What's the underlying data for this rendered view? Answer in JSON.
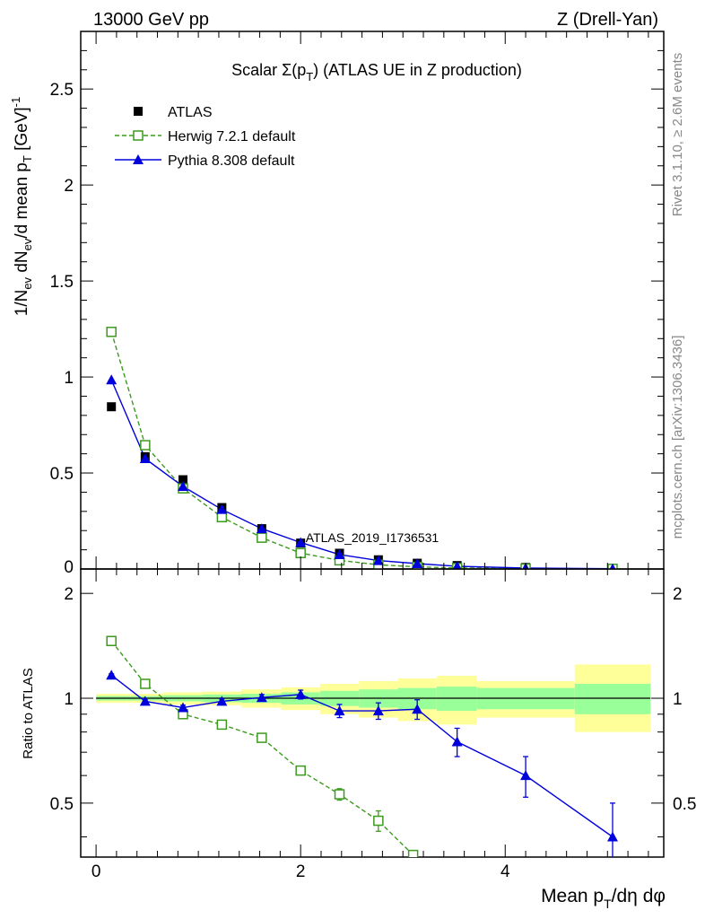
{
  "header": {
    "left": "13000 GeV pp",
    "right": "Z (Drell-Yan)"
  },
  "side_labels": {
    "rivet": "Rivet 3.1.10, ≥ 2.6M events",
    "mcplots": "mcplots.cern.ch [arXiv:1306.3436]"
  },
  "chart_data": [
    {
      "type": "scatter",
      "panel": "main",
      "title": "Scalar Σ(pT) (ATLAS UE in Z production)",
      "analysis_label": "ATLAS_2019_I1736531",
      "ylabel": "1/Nev dNev/d mean pT [GeV]^-1",
      "xlim": [
        -0.15,
        5.55
      ],
      "ylim": [
        0,
        2.8
      ],
      "yticks": [
        0.5,
        1,
        1.5,
        2,
        2.5
      ],
      "ytick_labels": [
        "0.5",
        "1",
        "1.5",
        "2",
        "2.5"
      ],
      "legend_position": "top-left",
      "x": [
        0.15,
        0.48,
        0.85,
        1.23,
        1.62,
        2.0,
        2.38,
        2.76,
        3.14,
        3.53,
        4.2,
        5.05
      ],
      "series": [
        {
          "name": "ATLAS",
          "color": "#000000",
          "marker": "filled-square",
          "values": [
            0.845,
            0.585,
            0.465,
            0.32,
            0.21,
            0.135,
            0.082,
            0.048,
            0.03,
            0.018,
            0.008,
            0.003
          ]
        },
        {
          "name": "Herwig 7.2.1 default",
          "color": "#3c9a1e",
          "marker": "open-square",
          "line": "dashed",
          "values": [
            1.235,
            0.645,
            0.42,
            0.27,
            0.163,
            0.083,
            0.045,
            0.022,
            0.011,
            0.005,
            0.002,
            0.0008
          ]
        },
        {
          "name": "Pythia 8.308 default",
          "color": "#0000dd",
          "marker": "filled-triangle",
          "line": "solid",
          "values": [
            0.985,
            0.575,
            0.43,
            0.31,
            0.21,
            0.138,
            0.075,
            0.044,
            0.028,
            0.014,
            0.005,
            0.0012
          ]
        }
      ]
    },
    {
      "type": "scatter",
      "panel": "ratio",
      "ylabel": "Ratio to ATLAS",
      "xlabel": "Mean pT/dη dφ",
      "xlim": [
        -0.15,
        5.55
      ],
      "ylim": [
        0.35,
        2.35
      ],
      "ylog": true,
      "yticks": [
        0.5,
        1,
        2
      ],
      "ytick_labels": [
        "0.5",
        "1",
        "2"
      ],
      "xticks": [
        0,
        2,
        4
      ],
      "xtick_labels": [
        "0",
        "2",
        "4"
      ],
      "band_edges": [
        0.0,
        0.3,
        0.66,
        1.04,
        1.42,
        1.81,
        2.19,
        2.57,
        2.95,
        3.33,
        3.72,
        4.68,
        5.42
      ],
      "band_inner": [
        [
          0.985,
          1.015
        ],
        [
          0.985,
          1.015
        ],
        [
          0.98,
          1.02
        ],
        [
          0.975,
          1.025
        ],
        [
          0.97,
          1.03
        ],
        [
          0.96,
          1.04
        ],
        [
          0.95,
          1.05
        ],
        [
          0.94,
          1.06
        ],
        [
          0.93,
          1.07
        ],
        [
          0.92,
          1.08
        ],
        [
          0.93,
          1.07
        ],
        [
          0.9,
          1.1
        ]
      ],
      "band_outer": [
        [
          0.97,
          1.03
        ],
        [
          0.97,
          1.03
        ],
        [
          0.96,
          1.04
        ],
        [
          0.955,
          1.045
        ],
        [
          0.94,
          1.06
        ],
        [
          0.925,
          1.075
        ],
        [
          0.9,
          1.1
        ],
        [
          0.88,
          1.12
        ],
        [
          0.86,
          1.14
        ],
        [
          0.84,
          1.16
        ],
        [
          0.88,
          1.12
        ],
        [
          0.8,
          1.25
        ]
      ],
      "series": [
        {
          "name": "Herwig 7.2.1 default",
          "color": "#3c9a1e",
          "marker": "open-square",
          "line": "dashed",
          "x": [
            0.15,
            0.48,
            0.85,
            1.23,
            1.62,
            2.0,
            2.38,
            2.76,
            3.1
          ],
          "values": [
            1.46,
            1.1,
            0.9,
            0.84,
            0.77,
            0.62,
            0.53,
            0.445,
            0.355
          ],
          "errors": [
            0.015,
            0.015,
            0.015,
            0.015,
            0.015,
            0.015,
            0.02,
            0.03,
            0
          ]
        },
        {
          "name": "Pythia 8.308 default",
          "color": "#0000dd",
          "marker": "filled-triangle",
          "line": "solid",
          "x": [
            0.15,
            0.48,
            0.85,
            1.23,
            1.62,
            2.0,
            2.38,
            2.76,
            3.14,
            3.53,
            4.2,
            5.05
          ],
          "values": [
            1.165,
            0.98,
            0.94,
            0.98,
            1.005,
            1.025,
            0.92,
            0.92,
            0.93,
            0.75,
            0.6,
            0.4
          ],
          "errors": [
            0.01,
            0.01,
            0.015,
            0.015,
            0.02,
            0.03,
            0.04,
            0.05,
            0.06,
            0.07,
            0.08,
            0.1
          ]
        }
      ]
    }
  ]
}
